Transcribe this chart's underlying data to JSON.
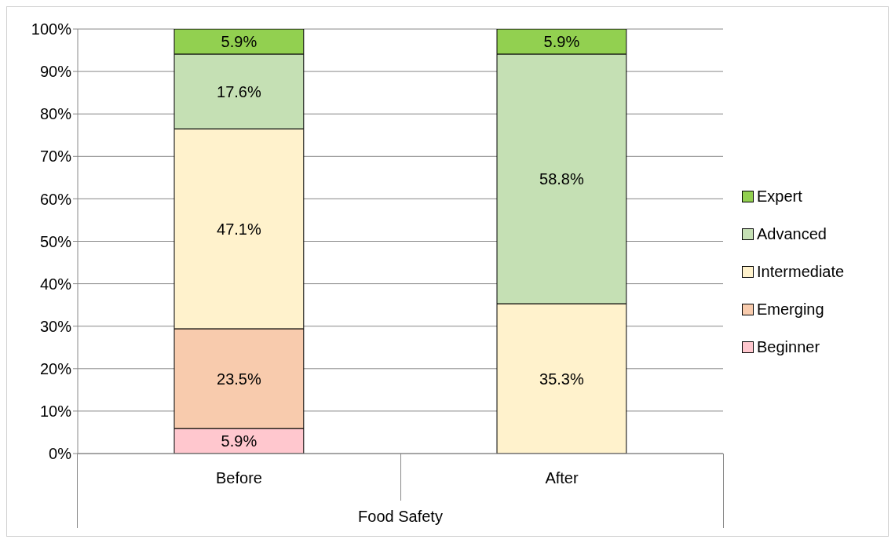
{
  "chart_data": {
    "type": "bar",
    "stacked": true,
    "categories": [
      "Before",
      "After"
    ],
    "xlabel": "Food Safety",
    "series": [
      {
        "name": "Beginner",
        "color": "#ffc7ce",
        "values": [
          5.9,
          null
        ],
        "value_labels": [
          "5.9%",
          null
        ]
      },
      {
        "name": "Emerging",
        "color": "#f8cbad",
        "values": [
          23.5,
          null
        ],
        "value_labels": [
          "23.5%",
          null
        ]
      },
      {
        "name": "Intermediate",
        "color": "#fff2cc",
        "values": [
          47.1,
          35.3
        ],
        "value_labels": [
          "47.1%",
          "35.3%"
        ]
      },
      {
        "name": "Advanced",
        "color": "#c5e0b4",
        "values": [
          17.6,
          58.8
        ],
        "value_labels": [
          "17.6%",
          "58.8%"
        ]
      },
      {
        "name": "Expert",
        "color": "#92d050",
        "values": [
          5.9,
          5.9
        ],
        "value_labels": [
          "5.9%",
          "5.9%"
        ]
      }
    ],
    "ylim": [
      0,
      100
    ],
    "yticks": [
      {
        "value": 0,
        "label": "0%"
      },
      {
        "value": 10,
        "label": "10%"
      },
      {
        "value": 20,
        "label": "20%"
      },
      {
        "value": 30,
        "label": "30%"
      },
      {
        "value": 40,
        "label": "40%"
      },
      {
        "value": 50,
        "label": "50%"
      },
      {
        "value": 60,
        "label": "60%"
      },
      {
        "value": 70,
        "label": "70%"
      },
      {
        "value": 80,
        "label": "80%"
      },
      {
        "value": 90,
        "label": "90%"
      },
      {
        "value": 100,
        "label": "100%"
      }
    ],
    "grid": "y",
    "legend": "right"
  }
}
